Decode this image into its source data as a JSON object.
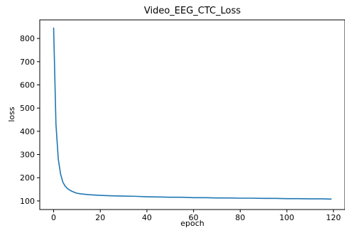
{
  "chart_data": {
    "type": "line",
    "title": "Video_EEG_CTC_Loss",
    "xlabel": "epoch",
    "ylabel": "loss",
    "xlim": [
      -5.95,
      124.95
    ],
    "ylim": [
      63,
      880
    ],
    "xticks": [
      0,
      20,
      40,
      60,
      80,
      100,
      120
    ],
    "yticks": [
      100,
      200,
      300,
      400,
      500,
      600,
      700,
      800
    ],
    "grid": false,
    "legend": "none",
    "series": [
      {
        "color": "#1f77b4",
        "x": [
          0,
          1,
          2,
          3,
          4,
          5,
          6,
          7,
          8,
          9,
          10,
          12,
          15,
          20,
          25,
          30,
          35,
          40,
          45,
          50,
          55,
          60,
          65,
          70,
          75,
          80,
          85,
          90,
          95,
          100,
          105,
          110,
          115,
          119
        ],
        "y": [
          845,
          430,
          280,
          215,
          180,
          163,
          153,
          146,
          141,
          137,
          133,
          130,
          127,
          124,
          122,
          121,
          120,
          118,
          117,
          116,
          116,
          114,
          114,
          113,
          113,
          112,
          112,
          111,
          111,
          110,
          110,
          109,
          109,
          108
        ]
      }
    ]
  }
}
